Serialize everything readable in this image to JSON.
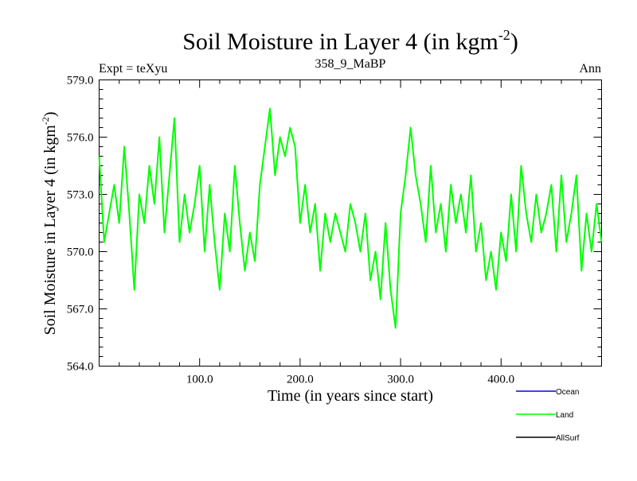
{
  "chart_data": {
    "type": "line",
    "title": "Soil Moisture in Layer 4 (in kgm",
    "title_sup": "-2",
    "title_close": ")",
    "left_label": "Expt = teXyu",
    "center_label": "358_9_MaBP",
    "right_label": "Ann",
    "xlabel": "Time (in years since start)",
    "ylabel": "Soil Moisture in Layer 4 (in kgm",
    "ylabel_sup": "-2",
    "ylabel_close": ")",
    "xlim": [
      0,
      500
    ],
    "ylim": [
      564.0,
      579.0
    ],
    "xticks": [
      100,
      200,
      300,
      400
    ],
    "xtick_labels": [
      "100.0",
      "200.0",
      "300.0",
      "400.0"
    ],
    "yticks": [
      564,
      567,
      570,
      573,
      576,
      579
    ],
    "ytick_labels": [
      "564.0",
      "567.0",
      "570.0",
      "573.0",
      "576.0",
      "579.0"
    ],
    "grid": false,
    "legend_position": "bottom-right",
    "legend": [
      {
        "name": "Ocean",
        "color": "#0000ff"
      },
      {
        "name": "Land",
        "color": "#00ff00"
      },
      {
        "name": "AllSurf",
        "color": "#000000"
      }
    ],
    "series": [
      {
        "name": "Land",
        "color": "#00ff00",
        "x": [
          0,
          5,
          10,
          15,
          20,
          25,
          30,
          35,
          40,
          45,
          50,
          55,
          60,
          65,
          70,
          75,
          80,
          85,
          90,
          95,
          100,
          105,
          110,
          115,
          120,
          125,
          130,
          135,
          140,
          145,
          150,
          155,
          160,
          165,
          170,
          175,
          180,
          185,
          190,
          195,
          200,
          205,
          210,
          215,
          220,
          225,
          230,
          235,
          240,
          245,
          250,
          255,
          260,
          265,
          270,
          275,
          280,
          285,
          290,
          295,
          300,
          305,
          310,
          315,
          320,
          325,
          330,
          335,
          340,
          345,
          350,
          355,
          360,
          365,
          370,
          375,
          380,
          385,
          390,
          395,
          400,
          405,
          410,
          415,
          420,
          425,
          430,
          435,
          440,
          445,
          450,
          455,
          460,
          465,
          470,
          475,
          480,
          485,
          490,
          495,
          500
        ],
        "y": [
          575.0,
          570.5,
          572.0,
          573.5,
          571.5,
          575.5,
          572.0,
          568.0,
          573.0,
          571.5,
          574.5,
          572.5,
          576.0,
          571.0,
          574.0,
          577.0,
          570.5,
          573.0,
          571.0,
          572.5,
          574.5,
          570.0,
          573.5,
          570.5,
          568.0,
          572.0,
          570.0,
          574.5,
          571.5,
          569.0,
          571.0,
          569.5,
          573.5,
          575.5,
          577.5,
          574.0,
          576.0,
          575.0,
          576.5,
          575.5,
          571.5,
          573.5,
          571.0,
          572.5,
          569.0,
          572.0,
          570.5,
          572.0,
          571.0,
          570.0,
          572.5,
          571.5,
          570.0,
          572.0,
          568.5,
          570.0,
          567.5,
          571.5,
          568.0,
          566.0,
          572.0,
          574.0,
          576.5,
          574.0,
          572.5,
          570.5,
          574.5,
          571.0,
          572.5,
          570.0,
          573.5,
          571.5,
          573.0,
          571.0,
          574.0,
          570.0,
          571.5,
          568.5,
          570.0,
          568.0,
          571.0,
          569.5,
          573.0,
          570.0,
          574.5,
          572.0,
          570.5,
          573.0,
          571.0,
          572.0,
          573.5,
          570.0,
          574.0,
          570.5,
          572.0,
          574.0,
          569.0,
          572.0,
          570.0,
          572.5,
          570.5
        ]
      }
    ]
  }
}
